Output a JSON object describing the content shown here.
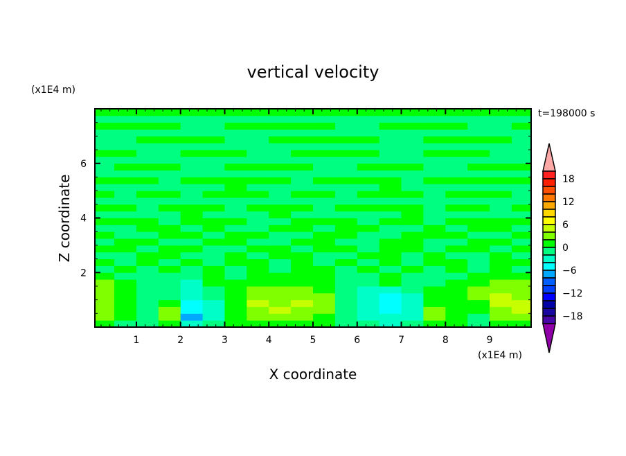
{
  "chart_data": {
    "type": "heatmap",
    "title": "vertical velocity",
    "xlabel": "X coordinate",
    "ylabel": "Z coordinate",
    "x_unit": "(x1E4 m)",
    "y_unit": "(x1E4 m)",
    "time_label": "t=198000 s",
    "xlim": [
      0.06,
      9.94
    ],
    "ylim": [
      0,
      8
    ],
    "x_ticks": [
      1,
      2,
      3,
      4,
      5,
      6,
      7,
      8,
      9
    ],
    "y_ticks": [
      2,
      4,
      6
    ],
    "x_centers": [
      0.25,
      0.75,
      1.25,
      1.75,
      2.25,
      2.75,
      3.25,
      3.75,
      4.25,
      4.75,
      5.25,
      5.75,
      6.25,
      6.75,
      7.25,
      7.75,
      8.25,
      8.75,
      9.25,
      9.75
    ],
    "z_step": 0.25,
    "values_bottom_to_top": [
      [
        1,
        -1,
        -1,
        1,
        -3,
        -1,
        1,
        1,
        1,
        1,
        1,
        -1,
        -1,
        -3,
        -1,
        1,
        1,
        -1,
        1,
        1
      ],
      [
        3,
        1,
        -1,
        3,
        -7,
        -3,
        1,
        3,
        3,
        3,
        1,
        -1,
        -3,
        -3,
        -3,
        3,
        1,
        -1,
        3,
        3
      ],
      [
        3,
        1,
        -1,
        3,
        -5,
        -3,
        1,
        3,
        5,
        3,
        3,
        -1,
        -3,
        -5,
        -3,
        3,
        1,
        1,
        3,
        5
      ],
      [
        3,
        1,
        -1,
        1,
        -5,
        -3,
        1,
        5,
        3,
        5,
        3,
        -1,
        -3,
        -5,
        -3,
        1,
        1,
        1,
        5,
        5
      ],
      [
        3,
        1,
        -1,
        -1,
        -3,
        -1,
        1,
        3,
        3,
        3,
        3,
        -1,
        -3,
        -5,
        -3,
        1,
        1,
        3,
        5,
        3
      ],
      [
        3,
        1,
        -1,
        -1,
        -3,
        -1,
        1,
        3,
        3,
        3,
        1,
        -1,
        -3,
        -3,
        -1,
        1,
        1,
        3,
        3,
        3
      ],
      [
        3,
        1,
        -1,
        -1,
        -3,
        1,
        1,
        1,
        1,
        1,
        1,
        -1,
        -1,
        1,
        -1,
        -1,
        1,
        1,
        3,
        3
      ],
      [
        1,
        -1,
        -1,
        -1,
        -1,
        1,
        -1,
        1,
        1,
        1,
        1,
        -1,
        -1,
        1,
        -1,
        -1,
        -1,
        1,
        1,
        1
      ],
      [
        -1,
        1,
        -1,
        1,
        -1,
        1,
        -1,
        1,
        -1,
        1,
        1,
        -1,
        1,
        -1,
        1,
        -1,
        1,
        -1,
        1,
        -1
      ],
      [
        1,
        -1,
        1,
        -1,
        1,
        -1,
        1,
        1,
        -1,
        1,
        -1,
        1,
        -1,
        1,
        -1,
        1,
        1,
        -1,
        1,
        1
      ],
      [
        -1,
        -1,
        1,
        1,
        -1,
        -1,
        1,
        -1,
        1,
        1,
        -1,
        -1,
        1,
        1,
        -1,
        1,
        -1,
        -1,
        1,
        -1
      ],
      [
        1,
        1,
        -1,
        1,
        1,
        -1,
        -1,
        1,
        1,
        -1,
        1,
        1,
        -1,
        1,
        1,
        -1,
        1,
        1,
        -1,
        1
      ],
      [
        -1,
        1,
        1,
        -1,
        -1,
        1,
        1,
        -1,
        -1,
        1,
        1,
        -1,
        -1,
        1,
        1,
        -1,
        -1,
        1,
        1,
        -1
      ],
      [
        1,
        -1,
        -1,
        1,
        1,
        -1,
        1,
        1,
        -1,
        -1,
        1,
        1,
        -1,
        -1,
        1,
        1,
        1,
        -1,
        -1,
        1
      ],
      [
        -1,
        -1,
        1,
        1,
        -1,
        1,
        -1,
        -1,
        1,
        1,
        -1,
        1,
        1,
        -1,
        -1,
        1,
        -1,
        1,
        1,
        -1
      ],
      [
        1,
        1,
        1,
        -1,
        1,
        1,
        1,
        -1,
        -1,
        1,
        1,
        1,
        -1,
        1,
        1,
        -1,
        1,
        1,
        1,
        1
      ],
      [
        -1,
        -1,
        -1,
        -1,
        1,
        -1,
        -1,
        -1,
        1,
        -1,
        -1,
        -1,
        -1,
        -1,
        1,
        -1,
        -1,
        -1,
        -1,
        -1
      ],
      [
        1,
        1,
        -1,
        1,
        1,
        1,
        -1,
        1,
        1,
        1,
        -1,
        1,
        1,
        1,
        1,
        -1,
        1,
        1,
        -1,
        1
      ],
      [
        -1,
        -1,
        -1,
        -1,
        -1,
        -1,
        -1,
        -1,
        -1,
        -1,
        -1,
        -1,
        -1,
        -1,
        -1,
        -1,
        -1,
        -1,
        -1,
        -1
      ],
      [
        1,
        -1,
        1,
        1,
        -1,
        1,
        1,
        1,
        -1,
        1,
        1,
        -1,
        1,
        1,
        1,
        -1,
        1,
        1,
        1,
        -1
      ],
      [
        -1,
        -1,
        -1,
        -1,
        -1,
        -1,
        1,
        -1,
        -1,
        -1,
        -1,
        -1,
        -1,
        1,
        -1,
        -1,
        -1,
        -1,
        -1,
        -1
      ],
      [
        1,
        1,
        1,
        -1,
        1,
        1,
        1,
        1,
        1,
        -1,
        1,
        1,
        1,
        1,
        -1,
        1,
        1,
        1,
        1,
        1
      ],
      [
        -1,
        -1,
        -1,
        -1,
        -1,
        -1,
        -1,
        -1,
        -1,
        -1,
        -1,
        -1,
        -1,
        -1,
        -1,
        -1,
        -1,
        -1,
        -1,
        -1
      ],
      [
        -1,
        1,
        1,
        1,
        -1,
        -1,
        1,
        1,
        1,
        1,
        -1,
        -1,
        1,
        1,
        1,
        -1,
        -1,
        1,
        1,
        1
      ],
      [
        -1,
        -1,
        -1,
        -1,
        -1,
        -1,
        -1,
        -1,
        -1,
        -1,
        -1,
        -1,
        -1,
        -1,
        -1,
        -1,
        -1,
        -1,
        -1,
        -1
      ],
      [
        1,
        1,
        -1,
        -1,
        1,
        1,
        1,
        -1,
        -1,
        1,
        1,
        1,
        1,
        -1,
        -1,
        1,
        1,
        1,
        -1,
        -1
      ],
      [
        -1,
        -1,
        -1,
        -1,
        -1,
        -1,
        -1,
        -1,
        -1,
        -1,
        -1,
        -1,
        -1,
        -1,
        -1,
        -1,
        -1,
        -1,
        -1,
        -1
      ],
      [
        -1,
        -1,
        1,
        1,
        1,
        1,
        -1,
        -1,
        1,
        1,
        1,
        1,
        1,
        -1,
        -1,
        1,
        1,
        1,
        1,
        -1
      ],
      [
        -1,
        -1,
        -1,
        -1,
        -1,
        -1,
        -1,
        -1,
        -1,
        -1,
        -1,
        -1,
        -1,
        -1,
        -1,
        -1,
        -1,
        -1,
        -1,
        -1
      ],
      [
        1,
        1,
        1,
        1,
        -1,
        -1,
        1,
        1,
        1,
        1,
        1,
        -1,
        -1,
        1,
        1,
        1,
        1,
        -1,
        -1,
        1
      ],
      [
        -1,
        -1,
        -1,
        -1,
        -1,
        -1,
        -1,
        -1,
        -1,
        -1,
        -1,
        -1,
        -1,
        -1,
        -1,
        -1,
        -1,
        -1,
        -1,
        -1
      ],
      [
        1,
        1,
        1,
        1,
        1,
        1,
        1,
        1,
        1,
        1,
        1,
        1,
        1,
        1,
        1,
        1,
        1,
        1,
        1,
        1
      ]
    ],
    "colorbar": {
      "levels": [
        -20,
        -18,
        -16,
        -14,
        -12,
        -10,
        -8,
        -6,
        -4,
        -2,
        0,
        2,
        4,
        6,
        8,
        10,
        12,
        14,
        16,
        18,
        20
      ],
      "colors": [
        "#4808a8",
        "#1808a0",
        "#0000a8",
        "#0000ff",
        "#0040ff",
        "#0060ff",
        "#00a8ff",
        "#00ffff",
        "#00ffc8",
        "#00ff80",
        "#00ff00",
        "#80ff00",
        "#c8ff00",
        "#ffff00",
        "#ffd800",
        "#ffa800",
        "#ff7800",
        "#ff5000",
        "#ff2000",
        "#ff2020"
      ],
      "over_color": "#ffa8a8",
      "under_color": "#9000a8",
      "tick_labels": [
        "18",
        "12",
        "6",
        "0",
        "-6",
        "-12",
        "-18"
      ],
      "tick_values": [
        18,
        12,
        6,
        0,
        -6,
        -12,
        -18
      ]
    }
  }
}
